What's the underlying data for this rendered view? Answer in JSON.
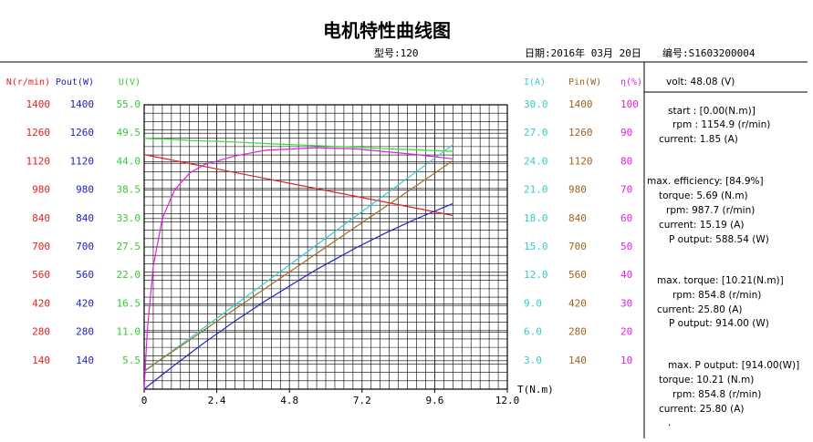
{
  "chart_data": {
    "type": "line",
    "title": "电机特性曲线图",
    "model": "型号:120",
    "date": "日期:2016年 03月 20日",
    "serial": "编号:S1603200004",
    "x_label": "T(N.m)",
    "xlim": [
      0,
      12
    ],
    "xticks": [
      0,
      2.4,
      4.8,
      7.2,
      9.6,
      {
        "value": 12,
        "label": "12.0"
      }
    ],
    "grid": true,
    "axes": [
      {
        "label": "N(r/min)",
        "color": "#e02020",
        "side": "left",
        "ylim": [
          0,
          1400
        ],
        "yticks": [
          140,
          280,
          420,
          560,
          700,
          840,
          980,
          1120,
          1260,
          1400
        ]
      },
      {
        "label": "Pout(W)",
        "color": "#2020c0",
        "side": "left",
        "ylim": [
          0,
          1400
        ],
        "yticks": [
          140,
          280,
          420,
          560,
          700,
          840,
          980,
          1120,
          1260,
          1400
        ]
      },
      {
        "label": "U(V)",
        "color": "#33cc33",
        "side": "left",
        "ylim": [
          0,
          55
        ],
        "yticks": [
          5.5,
          {
            "value": 11,
            "label": "11.0"
          },
          16.5,
          {
            "value": 22,
            "label": "22.0"
          },
          27.5,
          {
            "value": 33,
            "label": "33.0"
          },
          38.5,
          {
            "value": 44,
            "label": "44.0"
          },
          49.5,
          {
            "value": 55,
            "label": "55.0"
          }
        ]
      },
      {
        "label": "I(A)",
        "color": "#33cccc",
        "side": "right",
        "ylim": [
          0,
          30
        ],
        "yticks": [
          {
            "value": 3,
            "label": "3.0"
          },
          {
            "value": 6,
            "label": "6.0"
          },
          {
            "value": 9,
            "label": "9.0"
          },
          {
            "value": 12,
            "label": "12.0"
          },
          {
            "value": 15,
            "label": "15.0"
          },
          {
            "value": 18,
            "label": "18.0"
          },
          {
            "value": 21,
            "label": "21.0"
          },
          {
            "value": 24,
            "label": "24.0"
          },
          {
            "value": 27,
            "label": "27.0"
          },
          {
            "value": 30,
            "label": "30.0"
          }
        ]
      },
      {
        "label": "Pin(W)",
        "color": "#a06020",
        "side": "right",
        "ylim": [
          0,
          1400
        ],
        "yticks": [
          140,
          280,
          420,
          560,
          700,
          840,
          980,
          1120,
          1260,
          1400
        ]
      },
      {
        "label": "η(%)",
        "color": "#e020e0",
        "side": "right",
        "ylim": [
          0,
          100
        ],
        "yticks": [
          10,
          20,
          30,
          40,
          50,
          60,
          70,
          80,
          90,
          100
        ]
      }
    ],
    "x": [
      0,
      0.1,
      0.3,
      0.6,
      1,
      1.5,
      2,
      3,
      4,
      5.69,
      7,
      8,
      9,
      10.21
    ],
    "series": [
      {
        "axis": 0,
        "color": "#e02020",
        "values": [
          1154.9,
          1152.0,
          1146.1,
          1137.3,
          1125.5,
          1110.8,
          1096.1,
          1066.8,
          1037.4,
          987.7,
          949.2,
          919.9,
          890.5,
          854.8
        ]
      },
      {
        "axis": 1,
        "color": "#2020c0",
        "values": [
          0,
          12.1,
          36.0,
          71.5,
          117.9,
          174.5,
          229.6,
          335.1,
          434.5,
          588.5,
          695.8,
          770.6,
          839.3,
          914.0
        ]
      },
      {
        "axis": 2,
        "color": "#33dd33",
        "values": [
          48.5,
          48.5,
          48.4,
          48.4,
          48.3,
          48.1,
          48.0,
          47.8,
          47.5,
          47.1,
          46.8,
          46.5,
          46.3,
          46.0
        ]
      },
      {
        "axis": 3,
        "color": "#33cccc",
        "values": [
          1.85,
          2.08,
          2.55,
          3.26,
          4.2,
          5.37,
          6.54,
          8.89,
          11.23,
          15.19,
          18.27,
          20.62,
          22.96,
          25.8
        ]
      },
      {
        "axis": 4,
        "color": "#a07020",
        "values": [
          90,
          100,
          120,
          151,
          191,
          242,
          293,
          394,
          496,
          667,
          800,
          901,
          1003,
          1125
        ]
      },
      {
        "axis": 5,
        "color": "#e020e0",
        "values": [
          0,
          20,
          43,
          60,
          70,
          76,
          79,
          82,
          84,
          84.9,
          84.5,
          83.5,
          82.5,
          81
        ]
      }
    ],
    "panel": [
      "volt:   48.08 (V)",
      "start : [0.00(N.m)]",
      "rpm : 1154.9 (r/min)",
      "current: 1.85 (A)",
      "max. efficiency: [84.9%]",
      "torque: 5.69 (N.m)",
      "rpm: 987.7 (r/min)",
      "current: 15.19 (A)",
      "P output: 588.54 (W)",
      "max. torque: [10.21(N.m)]",
      "rpm: 854.8 (r/min)",
      "current: 25.80 (A)",
      "P output: 914.00 (W)",
      "max. P output: [914.00(W)]",
      "torque: 10.21 (N.m)",
      "rpm: 854.8 (r/min)",
      "current: 25.80 (A)",
      "."
    ]
  }
}
